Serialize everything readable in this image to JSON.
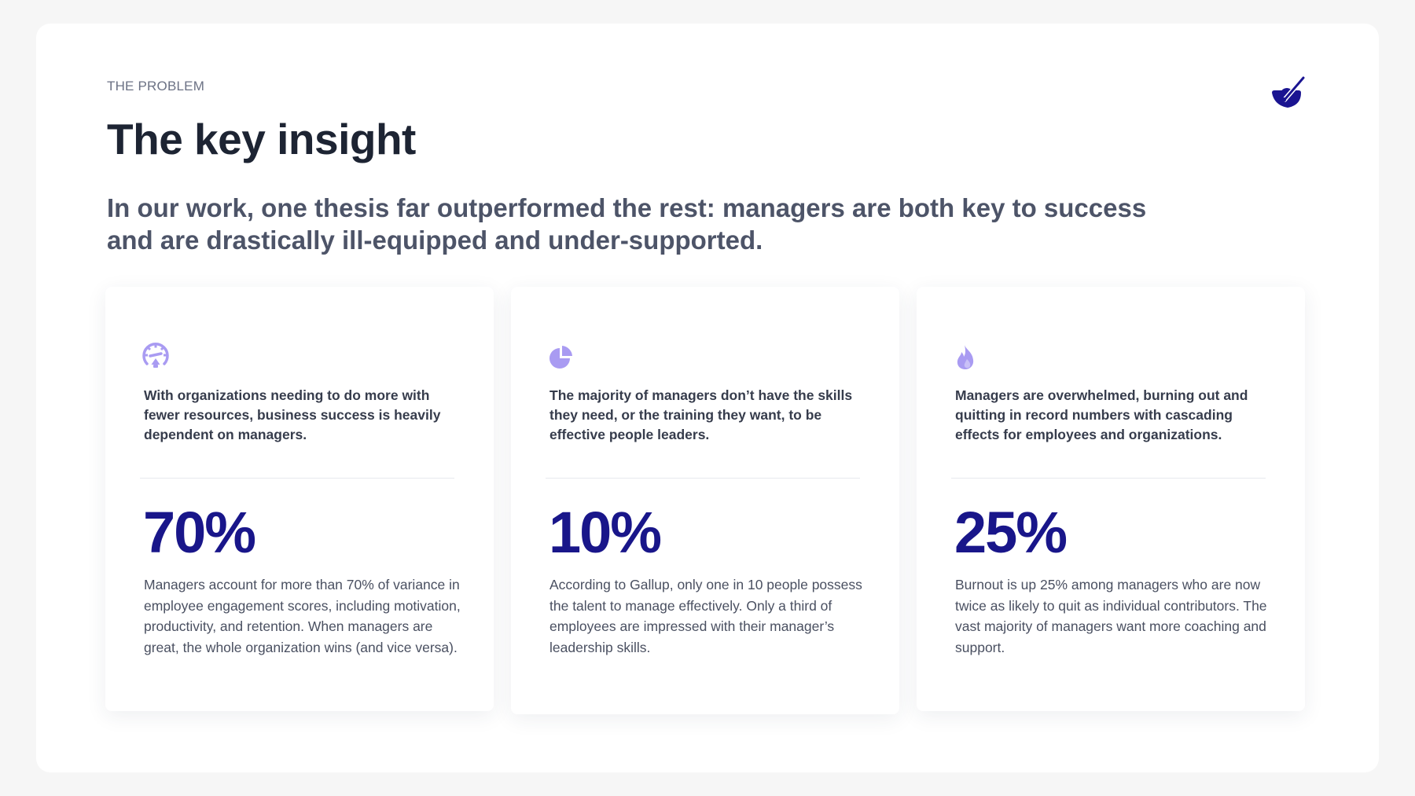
{
  "eyebrow": "THE PROBLEM",
  "title": "The key insight",
  "thesis": "In our work, one thesis far outperformed the rest: managers are both key to success and are drastically ill-equipped and under-supported.",
  "logo_icon": "paintbrush-in-bowl-icon",
  "colors": {
    "stat": "#19168a",
    "icon": "#a99bf2",
    "logo": "#1a1491"
  },
  "cards": [
    {
      "icon": "gauge-icon",
      "headline": "With organizations needing to do more with fewer resources, business success is heavily dependent on managers.",
      "stat": "70%",
      "body": "Managers account for more than 70% of variance in employee engagement scores, including motivation, productivity, and retention. When managers are great, the whole organization wins (and vice versa)."
    },
    {
      "icon": "pie-chart-icon",
      "headline": "The majority of managers don’t have the skills they need, or the training they want, to be effective people leaders.",
      "stat": "10%",
      "body": "According to Gallup, only one in 10 people possess the talent to manage effectively. Only a third of employees are impressed with their manager’s leadership skills."
    },
    {
      "icon": "flame-icon",
      "headline": "Managers are overwhelmed, burning out and quitting in record numbers with cascading effects for employees and organizations.",
      "stat": "25%",
      "body": "Burnout is up 25% among managers who are now twice as likely to quit as individual contributors. The vast majority of managers want more coaching and support."
    }
  ]
}
